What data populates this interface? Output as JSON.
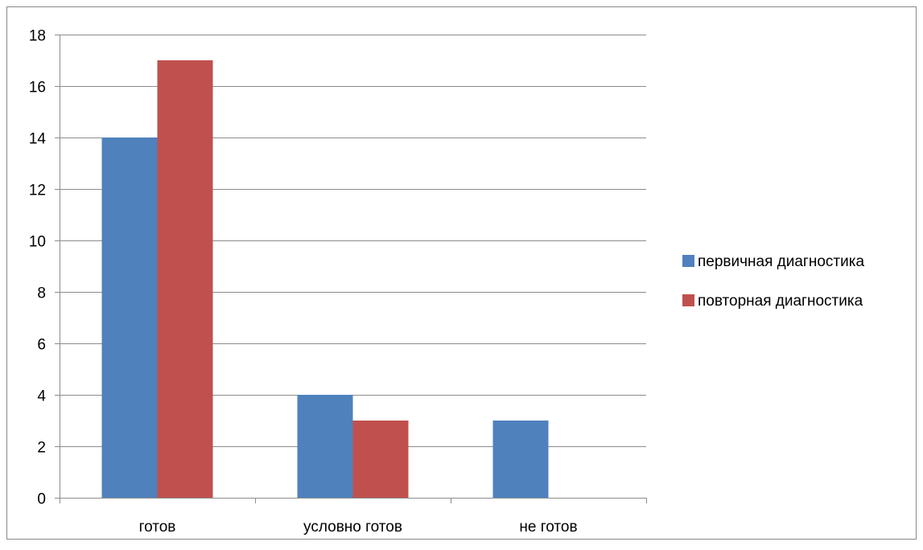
{
  "chart_data": {
    "type": "bar",
    "title": "",
    "xlabel": "",
    "ylabel": "",
    "categories": [
      "готов",
      "условно готов",
      "не готов"
    ],
    "series": [
      {
        "name": "первичная диагностика",
        "color": "#4F81BD",
        "values": [
          14,
          4,
          3
        ]
      },
      {
        "name": "повторная диагностика",
        "color": "#C0504D",
        "values": [
          17,
          3,
          0
        ]
      }
    ],
    "ylim": [
      0,
      18
    ],
    "yticks": [
      0,
      2,
      4,
      6,
      8,
      10,
      12,
      14,
      16,
      18
    ],
    "grid": true,
    "legend": "right"
  }
}
